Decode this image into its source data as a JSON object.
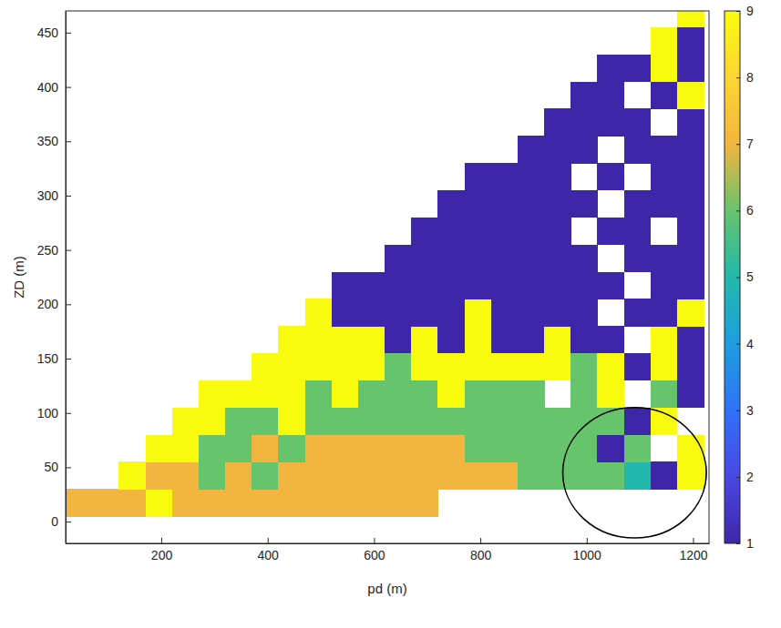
{
  "chart_data": {
    "type": "heatmap",
    "xlabel": "pd (m)",
    "ylabel": "ZD (m)",
    "xlim": [
      20,
      1230
    ],
    "ylim": [
      -20,
      470
    ],
    "xticks": [
      200,
      400,
      600,
      800,
      1000,
      1200
    ],
    "yticks": [
      0,
      50,
      100,
      150,
      200,
      250,
      300,
      350,
      400,
      450
    ],
    "x_bins": [
      20,
      70,
      120,
      170,
      220,
      270,
      320,
      370,
      420,
      470,
      520,
      570,
      620,
      670,
      720,
      770,
      820,
      870,
      920,
      970,
      1020,
      1070,
      1120,
      1170,
      1220
    ],
    "y_bins": [
      -20,
      5,
      30,
      55,
      80,
      105,
      130,
      155,
      180,
      205,
      230,
      255,
      280,
      305,
      330,
      355,
      380,
      405,
      430,
      455,
      480
    ],
    "cells": [
      [
        null,
        null,
        null,
        null,
        null,
        null,
        null,
        null,
        null,
        null,
        null,
        null,
        null,
        null,
        null,
        null,
        null,
        null,
        null,
        null,
        null,
        null,
        null,
        null
      ],
      [
        7,
        7,
        7,
        9,
        7,
        7,
        7,
        7,
        7,
        7,
        7,
        7,
        7,
        7,
        null,
        null,
        null,
        null,
        null,
        null,
        null,
        null,
        null,
        null
      ],
      [
        null,
        null,
        9,
        7,
        7,
        6,
        7,
        6,
        7,
        7,
        7,
        7,
        7,
        7,
        7,
        7,
        7,
        6,
        6,
        6,
        6,
        5,
        1,
        9
      ],
      [
        null,
        null,
        null,
        9,
        9,
        6,
        6,
        7,
        6,
        7,
        7,
        7,
        7,
        7,
        7,
        6,
        6,
        6,
        6,
        6,
        1,
        6,
        null,
        9
      ],
      [
        null,
        null,
        null,
        null,
        9,
        9,
        6,
        6,
        9,
        6,
        6,
        6,
        6,
        6,
        6,
        6,
        6,
        6,
        6,
        6,
        6,
        1,
        9,
        null
      ],
      [
        null,
        null,
        null,
        null,
        null,
        9,
        9,
        9,
        9,
        6,
        9,
        6,
        6,
        6,
        9,
        6,
        6,
        6,
        null,
        6,
        9,
        null,
        6,
        1
      ],
      [
        null,
        null,
        null,
        null,
        null,
        null,
        null,
        9,
        9,
        9,
        9,
        9,
        6,
        9,
        9,
        9,
        9,
        9,
        9,
        6,
        9,
        1,
        9,
        1
      ],
      [
        null,
        null,
        null,
        null,
        null,
        null,
        null,
        null,
        9,
        9,
        9,
        9,
        1,
        9,
        1,
        9,
        1,
        1,
        9,
        1,
        1,
        null,
        9,
        1
      ],
      [
        null,
        null,
        null,
        null,
        null,
        null,
        null,
        null,
        null,
        9,
        1,
        1,
        1,
        1,
        1,
        9,
        1,
        1,
        1,
        1,
        null,
        1,
        1,
        9
      ],
      [
        null,
        null,
        null,
        null,
        null,
        null,
        null,
        null,
        null,
        null,
        1,
        1,
        1,
        1,
        1,
        1,
        1,
        1,
        1,
        1,
        1,
        null,
        1,
        1
      ],
      [
        null,
        null,
        null,
        null,
        null,
        null,
        null,
        null,
        null,
        null,
        null,
        null,
        1,
        1,
        1,
        1,
        1,
        1,
        1,
        1,
        null,
        1,
        1,
        1
      ],
      [
        null,
        null,
        null,
        null,
        null,
        null,
        null,
        null,
        null,
        null,
        null,
        null,
        null,
        1,
        1,
        1,
        1,
        1,
        1,
        null,
        1,
        1,
        null,
        1
      ],
      [
        null,
        null,
        null,
        null,
        null,
        null,
        null,
        null,
        null,
        null,
        null,
        null,
        null,
        null,
        1,
        1,
        1,
        1,
        1,
        1,
        null,
        1,
        1,
        1
      ],
      [
        null,
        null,
        null,
        null,
        null,
        null,
        null,
        null,
        null,
        null,
        null,
        null,
        null,
        null,
        null,
        1,
        1,
        1,
        1,
        null,
        1,
        null,
        1,
        1
      ],
      [
        null,
        null,
        null,
        null,
        null,
        null,
        null,
        null,
        null,
        null,
        null,
        null,
        null,
        null,
        null,
        null,
        null,
        1,
        1,
        1,
        null,
        1,
        1,
        1
      ],
      [
        null,
        null,
        null,
        null,
        null,
        null,
        null,
        null,
        null,
        null,
        null,
        null,
        null,
        null,
        null,
        null,
        null,
        null,
        1,
        1,
        1,
        1,
        null,
        1
      ],
      [
        null,
        null,
        null,
        null,
        null,
        null,
        null,
        null,
        null,
        null,
        null,
        null,
        null,
        null,
        null,
        null,
        null,
        null,
        null,
        1,
        1,
        null,
        1,
        9
      ],
      [
        null,
        null,
        null,
        null,
        null,
        null,
        null,
        null,
        null,
        null,
        null,
        null,
        null,
        null,
        null,
        null,
        null,
        null,
        null,
        null,
        1,
        1,
        9,
        1
      ],
      [
        null,
        null,
        null,
        null,
        null,
        null,
        null,
        null,
        null,
        null,
        null,
        null,
        null,
        null,
        null,
        null,
        null,
        null,
        null,
        null,
        null,
        null,
        9,
        1
      ],
      [
        null,
        null,
        null,
        null,
        null,
        null,
        null,
        null,
        null,
        null,
        null,
        null,
        null,
        null,
        null,
        null,
        null,
        null,
        null,
        null,
        null,
        null,
        null,
        9
      ]
    ],
    "colorbar": {
      "range": [
        1,
        9
      ],
      "ticks": [
        1,
        2,
        3,
        4,
        5,
        6,
        7,
        8,
        9
      ]
    },
    "highlight": {
      "x": 1090,
      "y": 45,
      "rx": 135,
      "ry": 60
    }
  }
}
